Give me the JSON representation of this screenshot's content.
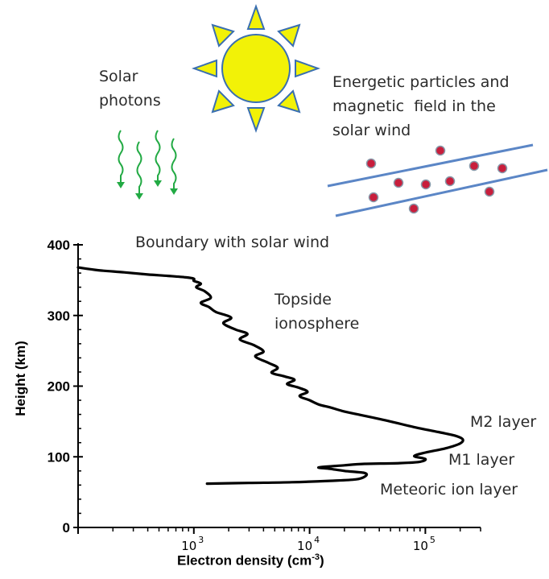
{
  "illustration": {
    "sun_icon": "sun-icon",
    "colors": {
      "sun_fill": "#f2f207",
      "sun_stroke": "#3a6fb0",
      "photon": "#22aa44",
      "particle": "#c81e3c",
      "field_line": "#5b86c6"
    },
    "solar_photons_lines": [
      "Solar",
      "photons"
    ],
    "solar_wind_lines": [
      "Energetic particles and",
      "magnetic  field in the",
      "solar wind"
    ]
  },
  "annotations": {
    "boundary": "Boundary with solar wind",
    "topside_lines": [
      "Topside",
      "ionosphere"
    ],
    "m2": "M2 layer",
    "m1": "M1 layer",
    "meteoric": "Meteoric ion layer"
  },
  "chart_data": {
    "type": "line",
    "xlabel": "Electron density (cm⁻³)",
    "ylabel": "Height (km)",
    "x_scale": "log",
    "xlim": [
      100,
      300000
    ],
    "ylim": [
      0,
      400
    ],
    "y_ticks": [
      "0",
      "100",
      "200",
      "300",
      "400"
    ],
    "x_ticks": [
      {
        "value": 1000,
        "base": "10",
        "exp": "3"
      },
      {
        "value": 10000,
        "base": "10",
        "exp": "4"
      },
      {
        "value": 100000,
        "base": "10",
        "exp": "5"
      }
    ],
    "series": [
      {
        "x": [
          100,
          150,
          250,
          400,
          600,
          850,
          1000,
          1000,
          1150,
          1050,
          1250,
          1400,
          1150,
          1350,
          1550,
          2100,
          1800,
          2300,
          2900,
          2500,
          3300,
          4000,
          3400,
          4400,
          5300,
          4700,
          6000,
          7400,
          6400,
          8000,
          9600,
          8200,
          10000,
          12000,
          15000,
          20000,
          30000,
          50000,
          80000,
          130000,
          180000,
          210000,
          200000,
          150000,
          100000,
          80000,
          100000,
          90000,
          60000,
          30000,
          20000,
          12000,
          15000,
          20000,
          30000,
          30000,
          25000,
          15000,
          7000,
          3000,
          1300
        ],
        "y": [
          368,
          364,
          361,
          358,
          356,
          354,
          352,
          349,
          345,
          340,
          334,
          325,
          318,
          312,
          305,
          297,
          289,
          280,
          274,
          266,
          258,
          249,
          242,
          233,
          226,
          219,
          214,
          209,
          203,
          198,
          192,
          186,
          180,
          174,
          170,
          164,
          158,
          150,
          142,
          135,
          130,
          125,
          119,
          112,
          106,
          101,
          97,
          93,
          91,
          90,
          88,
          85,
          83,
          80,
          77,
          72,
          68,
          66,
          64,
          63,
          62
        ]
      }
    ]
  }
}
